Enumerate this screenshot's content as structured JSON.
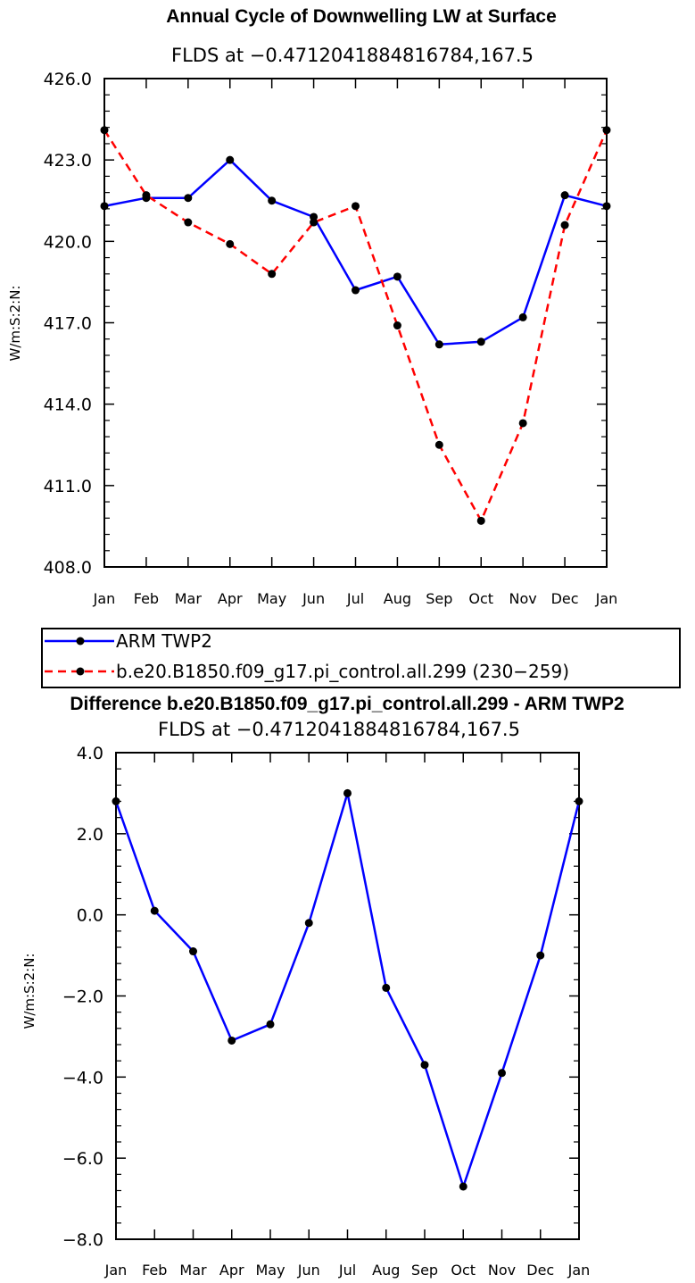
{
  "chart_data": [
    {
      "type": "line",
      "title": "Annual Cycle of Downwelling LW at Surface",
      "subtitle": "FLDS at −0.4712041884816784,167.5",
      "ylabel": "W/m:S:2:N:",
      "xlabel": "",
      "categories": [
        "Jan",
        "Feb",
        "Mar",
        "Apr",
        "May",
        "Jun",
        "Jul",
        "Aug",
        "Sep",
        "Oct",
        "Nov",
        "Dec",
        "Jan"
      ],
      "ylim": [
        408.0,
        426.0
      ],
      "yticks": [
        "408.0",
        "411.0",
        "414.0",
        "417.0",
        "420.0",
        "423.0",
        "426.0"
      ],
      "series": [
        {
          "name": "ARM TWP2",
          "color": "#0000ff",
          "dash": "solid",
          "values": [
            421.3,
            421.6,
            421.6,
            423.0,
            421.5,
            420.9,
            418.2,
            418.7,
            416.2,
            416.3,
            417.2,
            421.7,
            421.3
          ]
        },
        {
          "name": "b.e20.B1850.f09_g17.pi_control.all.299 (230−259)",
          "color": "#ff0000",
          "dash": "dashed",
          "values": [
            424.1,
            421.7,
            420.7,
            419.9,
            418.8,
            420.7,
            421.3,
            416.9,
            412.5,
            409.7,
            413.3,
            420.6,
            424.1
          ]
        }
      ],
      "legend": [
        "ARM TWP2",
        "b.e20.B1850.f09_g17.pi_control.all.299 (230−259)"
      ],
      "legend_position": "below"
    },
    {
      "type": "line",
      "title": "Difference b.e20.B1850.f09_g17.pi_control.all.299 - ARM TWP2",
      "subtitle": "FLDS at −0.4712041884816784,167.5",
      "ylabel": "W/m:S:2:N:",
      "xlabel": "",
      "categories": [
        "Jan",
        "Feb",
        "Mar",
        "Apr",
        "May",
        "Jun",
        "Jul",
        "Aug",
        "Sep",
        "Oct",
        "Nov",
        "Dec",
        "Jan"
      ],
      "ylim": [
        -8.0,
        4.0
      ],
      "yticks": [
        "−8.0",
        "−6.0",
        "−4.0",
        "−2.0",
        "0.0",
        "2.0",
        "4.0"
      ],
      "series": [
        {
          "name": "Difference",
          "color": "#0000ff",
          "dash": "solid",
          "values": [
            2.8,
            0.1,
            -0.9,
            -3.1,
            -2.7,
            -0.2,
            3.0,
            -1.8,
            -3.7,
            -6.7,
            -3.9,
            -1.0,
            2.8
          ]
        }
      ]
    }
  ]
}
